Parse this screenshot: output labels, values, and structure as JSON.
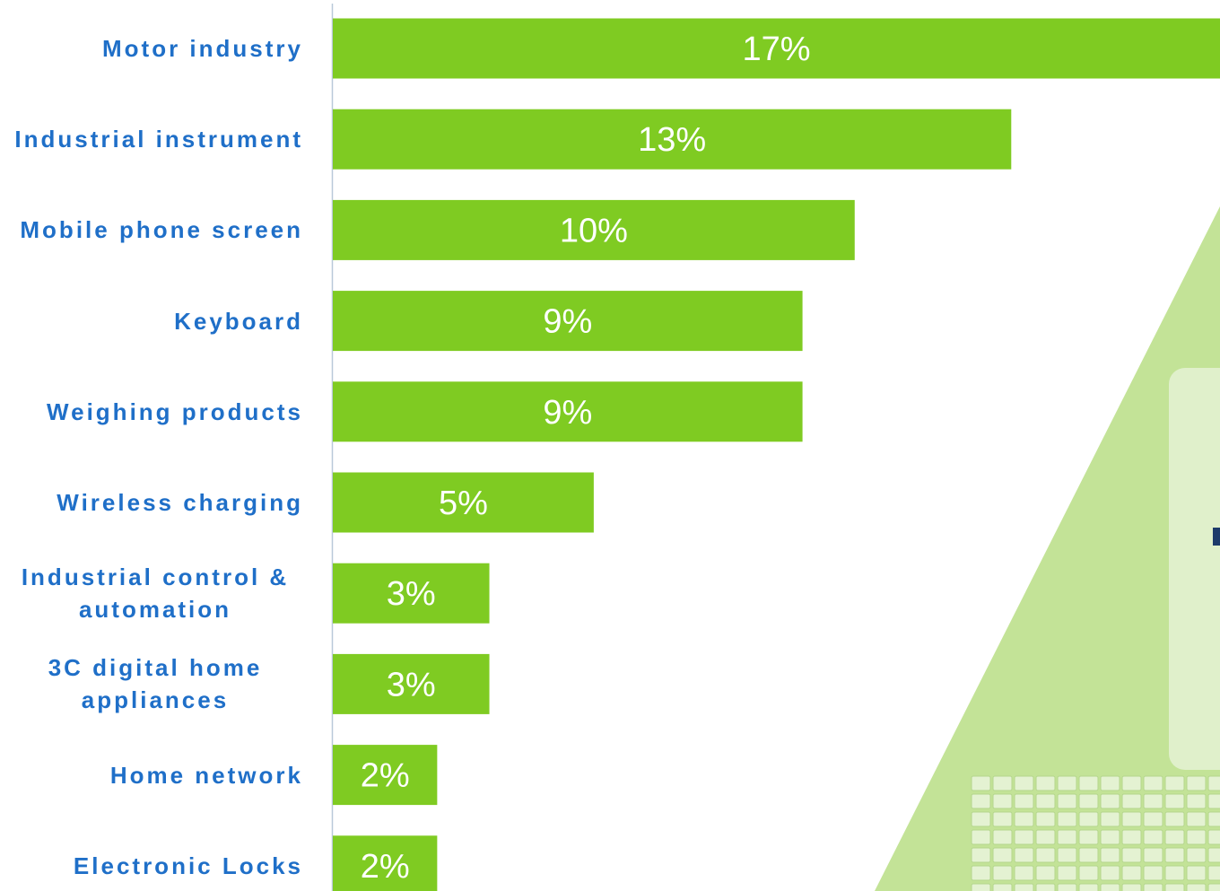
{
  "chart_data": {
    "type": "bar",
    "orientation": "horizontal",
    "categories": [
      "Motor industry",
      "Industrial instrument",
      "Mobile phone screen",
      "Keyboard",
      "Weighing products",
      "Wireless charging",
      "Industrial control & automation",
      "3C digital home appliances",
      "Home network",
      "Electronic Locks"
    ],
    "values": [
      17,
      13,
      10,
      9,
      9,
      5,
      3,
      3,
      2,
      2
    ],
    "value_labels": [
      "17%",
      "13%",
      "10%",
      "9%",
      "9%",
      "5%",
      "3%",
      "3%",
      "2%",
      "2%"
    ],
    "color": "#7fcb22",
    "xlim": [
      0,
      17
    ]
  }
}
